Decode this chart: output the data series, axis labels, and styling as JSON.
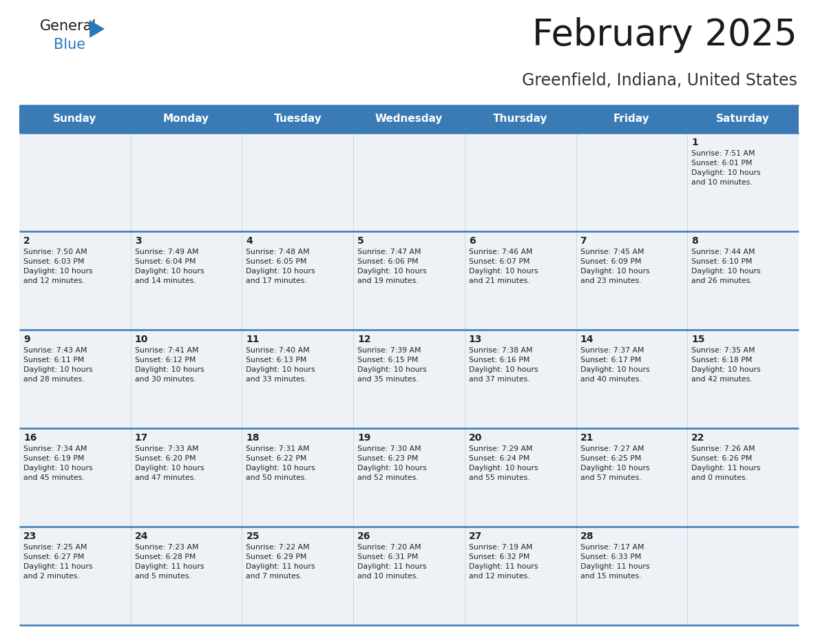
{
  "title": "February 2025",
  "subtitle": "Greenfield, Indiana, United States",
  "header_bg_color": "#3a7ab5",
  "header_text_color": "#ffffff",
  "cell_bg_white": "#ffffff",
  "cell_bg_light": "#eef2f7",
  "border_color": "#3a7ab5",
  "grid_line_color": "#c8d8e8",
  "text_color": "#222222",
  "days_of_week": [
    "Sunday",
    "Monday",
    "Tuesday",
    "Wednesday",
    "Thursday",
    "Friday",
    "Saturday"
  ],
  "weeks": [
    [
      {
        "day": null,
        "info": null
      },
      {
        "day": null,
        "info": null
      },
      {
        "day": null,
        "info": null
      },
      {
        "day": null,
        "info": null
      },
      {
        "day": null,
        "info": null
      },
      {
        "day": null,
        "info": null
      },
      {
        "day": "1",
        "info": "Sunrise: 7:51 AM\nSunset: 6:01 PM\nDaylight: 10 hours\nand 10 minutes."
      }
    ],
    [
      {
        "day": "2",
        "info": "Sunrise: 7:50 AM\nSunset: 6:03 PM\nDaylight: 10 hours\nand 12 minutes."
      },
      {
        "day": "3",
        "info": "Sunrise: 7:49 AM\nSunset: 6:04 PM\nDaylight: 10 hours\nand 14 minutes."
      },
      {
        "day": "4",
        "info": "Sunrise: 7:48 AM\nSunset: 6:05 PM\nDaylight: 10 hours\nand 17 minutes."
      },
      {
        "day": "5",
        "info": "Sunrise: 7:47 AM\nSunset: 6:06 PM\nDaylight: 10 hours\nand 19 minutes."
      },
      {
        "day": "6",
        "info": "Sunrise: 7:46 AM\nSunset: 6:07 PM\nDaylight: 10 hours\nand 21 minutes."
      },
      {
        "day": "7",
        "info": "Sunrise: 7:45 AM\nSunset: 6:09 PM\nDaylight: 10 hours\nand 23 minutes."
      },
      {
        "day": "8",
        "info": "Sunrise: 7:44 AM\nSunset: 6:10 PM\nDaylight: 10 hours\nand 26 minutes."
      }
    ],
    [
      {
        "day": "9",
        "info": "Sunrise: 7:43 AM\nSunset: 6:11 PM\nDaylight: 10 hours\nand 28 minutes."
      },
      {
        "day": "10",
        "info": "Sunrise: 7:41 AM\nSunset: 6:12 PM\nDaylight: 10 hours\nand 30 minutes."
      },
      {
        "day": "11",
        "info": "Sunrise: 7:40 AM\nSunset: 6:13 PM\nDaylight: 10 hours\nand 33 minutes."
      },
      {
        "day": "12",
        "info": "Sunrise: 7:39 AM\nSunset: 6:15 PM\nDaylight: 10 hours\nand 35 minutes."
      },
      {
        "day": "13",
        "info": "Sunrise: 7:38 AM\nSunset: 6:16 PM\nDaylight: 10 hours\nand 37 minutes."
      },
      {
        "day": "14",
        "info": "Sunrise: 7:37 AM\nSunset: 6:17 PM\nDaylight: 10 hours\nand 40 minutes."
      },
      {
        "day": "15",
        "info": "Sunrise: 7:35 AM\nSunset: 6:18 PM\nDaylight: 10 hours\nand 42 minutes."
      }
    ],
    [
      {
        "day": "16",
        "info": "Sunrise: 7:34 AM\nSunset: 6:19 PM\nDaylight: 10 hours\nand 45 minutes."
      },
      {
        "day": "17",
        "info": "Sunrise: 7:33 AM\nSunset: 6:20 PM\nDaylight: 10 hours\nand 47 minutes."
      },
      {
        "day": "18",
        "info": "Sunrise: 7:31 AM\nSunset: 6:22 PM\nDaylight: 10 hours\nand 50 minutes."
      },
      {
        "day": "19",
        "info": "Sunrise: 7:30 AM\nSunset: 6:23 PM\nDaylight: 10 hours\nand 52 minutes."
      },
      {
        "day": "20",
        "info": "Sunrise: 7:29 AM\nSunset: 6:24 PM\nDaylight: 10 hours\nand 55 minutes."
      },
      {
        "day": "21",
        "info": "Sunrise: 7:27 AM\nSunset: 6:25 PM\nDaylight: 10 hours\nand 57 minutes."
      },
      {
        "day": "22",
        "info": "Sunrise: 7:26 AM\nSunset: 6:26 PM\nDaylight: 11 hours\nand 0 minutes."
      }
    ],
    [
      {
        "day": "23",
        "info": "Sunrise: 7:25 AM\nSunset: 6:27 PM\nDaylight: 11 hours\nand 2 minutes."
      },
      {
        "day": "24",
        "info": "Sunrise: 7:23 AM\nSunset: 6:28 PM\nDaylight: 11 hours\nand 5 minutes."
      },
      {
        "day": "25",
        "info": "Sunrise: 7:22 AM\nSunset: 6:29 PM\nDaylight: 11 hours\nand 7 minutes."
      },
      {
        "day": "26",
        "info": "Sunrise: 7:20 AM\nSunset: 6:31 PM\nDaylight: 11 hours\nand 10 minutes."
      },
      {
        "day": "27",
        "info": "Sunrise: 7:19 AM\nSunset: 6:32 PM\nDaylight: 11 hours\nand 12 minutes."
      },
      {
        "day": "28",
        "info": "Sunrise: 7:17 AM\nSunset: 6:33 PM\nDaylight: 11 hours\nand 15 minutes."
      },
      {
        "day": null,
        "info": null
      }
    ]
  ]
}
